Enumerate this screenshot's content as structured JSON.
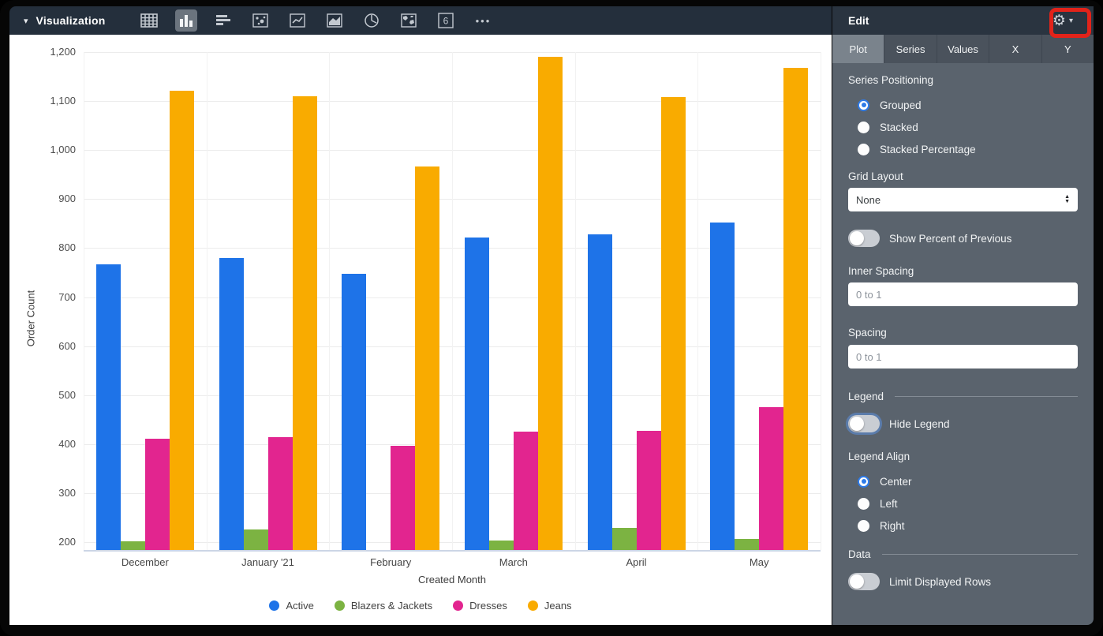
{
  "topbar": {
    "title": "Visualization",
    "icons": [
      "table-icon",
      "column-chart-icon",
      "bar-chart-icon",
      "scatter-icon",
      "line-chart-icon",
      "area-chart-icon",
      "pie-chart-icon",
      "map-icon",
      "single-value-icon",
      "more-icon"
    ],
    "selected_icon": "column-chart-icon"
  },
  "edit_panel": {
    "title": "Edit",
    "tabs": [
      {
        "label": "Plot",
        "selected": true
      },
      {
        "label": "Series",
        "selected": false
      },
      {
        "label": "Values",
        "selected": false
      },
      {
        "label": "X",
        "selected": false
      },
      {
        "label": "Y",
        "selected": false
      }
    ],
    "series_positioning": {
      "label": "Series Positioning",
      "options": [
        {
          "label": "Grouped",
          "selected": true
        },
        {
          "label": "Stacked",
          "selected": false
        },
        {
          "label": "Stacked Percentage",
          "selected": false
        }
      ]
    },
    "grid_layout": {
      "label": "Grid Layout",
      "value": "None"
    },
    "show_percent_of_previous": {
      "label": "Show Percent of Previous",
      "on": false
    },
    "inner_spacing": {
      "label": "Inner Spacing",
      "value": "",
      "placeholder": "0 to 1"
    },
    "spacing": {
      "label": "Spacing",
      "value": "",
      "placeholder": "0 to 1"
    },
    "legend_section": {
      "label": "Legend"
    },
    "hide_legend": {
      "label": "Hide Legend",
      "on": false,
      "focused": true
    },
    "legend_align": {
      "label": "Legend Align",
      "options": [
        {
          "label": "Center",
          "selected": true
        },
        {
          "label": "Left",
          "selected": false
        },
        {
          "label": "Right",
          "selected": false
        }
      ]
    },
    "data_section": {
      "label": "Data"
    },
    "limit_displayed_rows": {
      "label": "Limit Displayed Rows",
      "on": false
    }
  },
  "annotation": {
    "highlight_color": "#e2231a",
    "highlight_target": "gear-icon"
  },
  "chart_data": {
    "type": "bar",
    "title": "",
    "xlabel": "Created Month",
    "ylabel": "Order Count",
    "categories": [
      "December",
      "January '21",
      "February",
      "March",
      "April",
      "May"
    ],
    "series": [
      {
        "name": "Active",
        "color": "#1e73e8",
        "values": [
          767,
          780,
          748,
          822,
          828,
          853
        ]
      },
      {
        "name": "Blazers & Jackets",
        "color": "#7cb342",
        "values": [
          201,
          226,
          null,
          204,
          229,
          207
        ]
      },
      {
        "name": "Dresses",
        "color": "#e2258f",
        "values": [
          411,
          415,
          397,
          425,
          427,
          475
        ]
      },
      {
        "name": "Jeans",
        "color": "#f9ab00",
        "values": [
          1121,
          1110,
          966,
          1190,
          1108,
          1168
        ]
      }
    ],
    "ylim": [
      183,
      1218
    ],
    "yticks": [
      200,
      300,
      400,
      500,
      600,
      700,
      800,
      900,
      1000,
      1100,
      1200
    ],
    "grid": true,
    "legend_position": "bottom",
    "series_positioning": "grouped"
  }
}
